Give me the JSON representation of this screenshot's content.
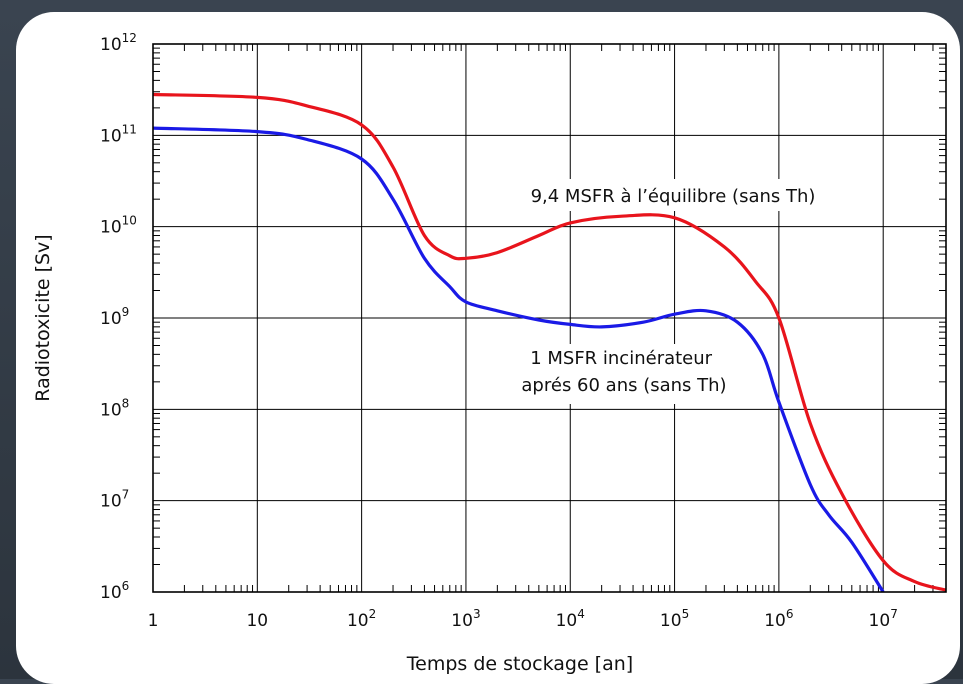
{
  "chart_data": {
    "type": "line",
    "title": "",
    "xlabel": "Temps de stockage [an]",
    "ylabel": "Radiotoxicite [Sv]",
    "xscale": "log",
    "yscale": "log",
    "xlim": [
      1,
      40000000
    ],
    "ylim": [
      1000000,
      1000000000000
    ],
    "grid": true,
    "x_ticks": [
      {
        "value": 1,
        "base": "1",
        "exp": ""
      },
      {
        "value": 10,
        "base": "10",
        "exp": ""
      },
      {
        "value": 100,
        "base": "10",
        "exp": "2"
      },
      {
        "value": 1000,
        "base": "10",
        "exp": "3"
      },
      {
        "value": 10000,
        "base": "10",
        "exp": "4"
      },
      {
        "value": 100000,
        "base": "10",
        "exp": "5"
      },
      {
        "value": 1000000,
        "base": "10",
        "exp": "6"
      },
      {
        "value": 10000000,
        "base": "10",
        "exp": "7"
      }
    ],
    "y_ticks": [
      {
        "value": 1000000,
        "base": "10",
        "exp": "6"
      },
      {
        "value": 10000000,
        "base": "10",
        "exp": "7"
      },
      {
        "value": 100000000,
        "base": "10",
        "exp": "8"
      },
      {
        "value": 1000000000,
        "base": "10",
        "exp": "9"
      },
      {
        "value": 10000000000,
        "base": "10",
        "exp": "10"
      },
      {
        "value": 100000000000,
        "base": "10",
        "exp": "11"
      },
      {
        "value": 1000000000000,
        "base": "10",
        "exp": "12"
      }
    ],
    "series": [
      {
        "name": "9,4 MSFR à l’équilibre (sans Th)",
        "color": "#e8141c",
        "x": [
          1,
          10,
          30,
          100,
          200,
          400,
          700,
          1000,
          2000,
          5000,
          10000,
          30000,
          100000,
          300000,
          600000,
          1000000,
          2000000,
          4000000,
          10000000,
          20000000,
          40000000
        ],
        "y": [
          280000000000,
          260000000000,
          210000000000,
          130000000000,
          45000000000,
          8000000000,
          4800000000,
          4500000000,
          5200000000,
          8000000000,
          11000000000,
          13000000000,
          12500000000,
          6000000000,
          2500000000,
          1000000000,
          70000000,
          12000000,
          2200000,
          1300000,
          1050000
        ]
      },
      {
        "name": "1 MSFR incinérateur aprés 60 ans (sans Th)",
        "color": "#1a1ae6",
        "x": [
          1,
          10,
          30,
          100,
          200,
          400,
          700,
          1000,
          2000,
          5000,
          10000,
          20000,
          50000,
          100000,
          200000,
          400000,
          700000,
          1000000,
          2000000,
          3000000,
          5000000,
          10000000
        ],
        "y": [
          120000000000,
          110000000000,
          90000000000,
          55000000000,
          20000000000,
          4500000000,
          2200000000,
          1500000000,
          1200000000,
          950000000,
          850000000,
          800000000,
          900000000,
          1100000000,
          1200000000,
          900000000,
          400000000,
          120000000,
          15000000,
          7000000,
          3500000,
          1000000
        ]
      }
    ]
  }
}
